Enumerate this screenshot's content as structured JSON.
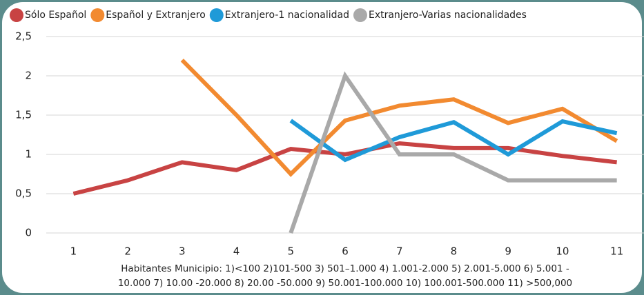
{
  "chart_data": {
    "type": "line",
    "categories": [
      "1",
      "2",
      "3",
      "4",
      "5",
      "6",
      "7",
      "8",
      "9",
      "10",
      "11"
    ],
    "series": [
      {
        "name": "Sólo Español",
        "color": "#c84343",
        "values": [
          0.5,
          0.67,
          0.9,
          0.8,
          1.07,
          1.0,
          1.14,
          1.08,
          1.08,
          0.98,
          0.9
        ]
      },
      {
        "name": "Español y Extranjero",
        "color": "#f28a30",
        "values": [
          null,
          null,
          2.2,
          1.5,
          0.75,
          1.43,
          1.62,
          1.7,
          1.4,
          1.58,
          1.17
        ]
      },
      {
        "name": "Extranjero-1 nacionalidad",
        "color": "#1f9ad8",
        "values": [
          null,
          null,
          null,
          null,
          1.43,
          0.93,
          1.22,
          1.41,
          1.0,
          1.42,
          1.27
        ]
      },
      {
        "name": "Extranjero-Varias nacionalidades",
        "color": "#a9a9a9",
        "values": [
          null,
          null,
          null,
          null,
          0,
          2.0,
          1.0,
          1.0,
          0.67,
          0.67,
          0.67
        ]
      }
    ],
    "xlabel_lines": [
      "Habitantes Municipio: 1)<100 2)101-500  3) 501–1.000  4) 1.001-2.000  5) 2.001-5.000   6) 5.001 -",
      "10.000  7) 10.00 -20.000  8) 20.00 -50.000  9) 50.001-100.000  10) 100.001-500.000 11) >500,000"
    ],
    "ylim": [
      0,
      2.5
    ],
    "yticks": [
      0,
      {
        "value": 0.5,
        "label": "0,5"
      },
      1,
      {
        "value": 1.5,
        "label": "1,5"
      },
      2,
      {
        "value": 2.5,
        "label": "2,5"
      }
    ],
    "grid": true,
    "legend": "top"
  }
}
